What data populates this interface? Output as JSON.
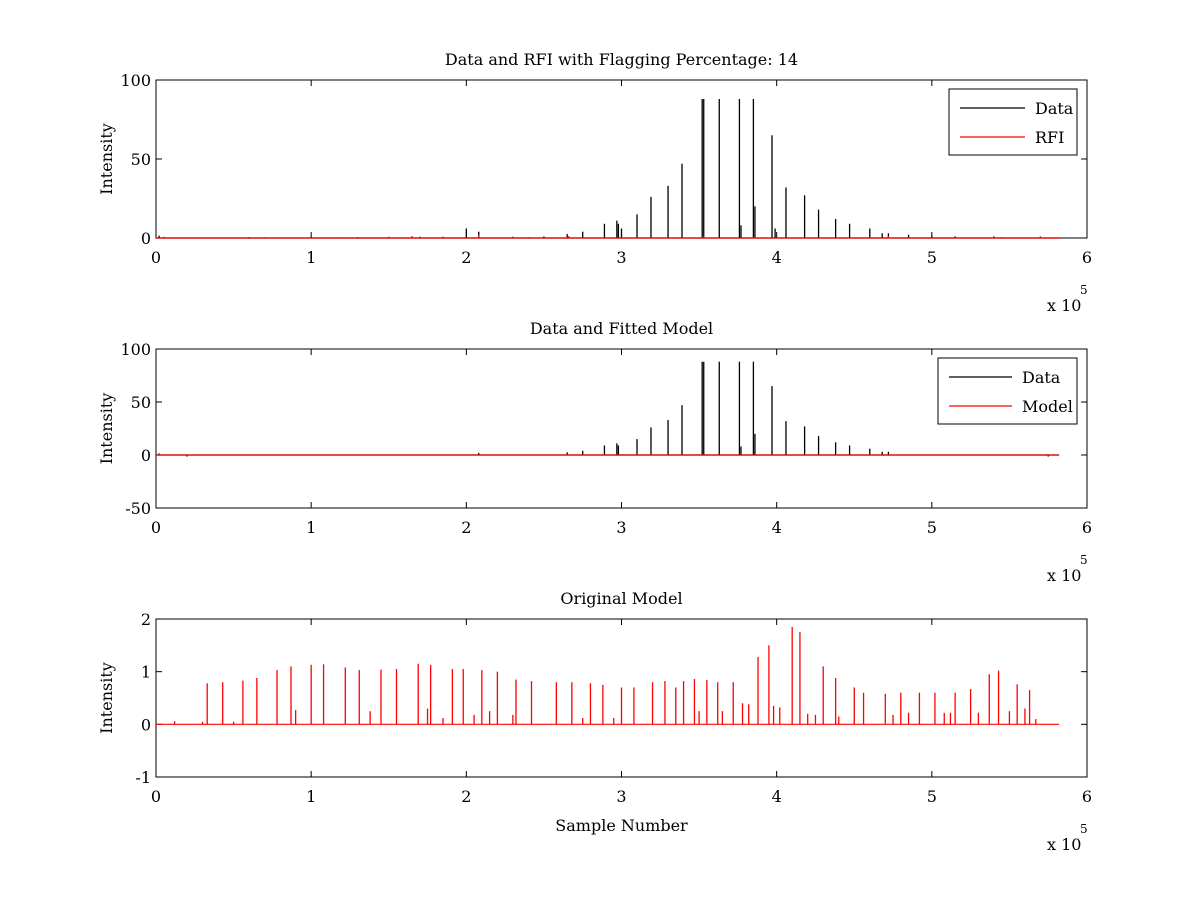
{
  "chart_data": [
    {
      "type": "line",
      "title": "Data and RFI with Flagging Percentage: 14",
      "xlabel": "",
      "ylabel": "Intensity",
      "xlim": [
        0,
        6
      ],
      "ylim": [
        0,
        100
      ],
      "xticks": [
        "0",
        "1",
        "2",
        "3",
        "4",
        "5",
        "6"
      ],
      "yticks": [
        "0",
        "50",
        "100"
      ],
      "x_exponent_label": "x 10",
      "x_exponent": "5",
      "legend": {
        "position": "top-right",
        "entries": [
          "Data",
          "RFI"
        ]
      },
      "series": [
        {
          "name": "Data",
          "color": "#000000",
          "peaks": [
            [
              0.02,
              1.5
            ],
            [
              0.6,
              0.6
            ],
            [
              1.0,
              0.8
            ],
            [
              1.3,
              0.6
            ],
            [
              1.7,
              0.8
            ],
            [
              2.0,
              6
            ],
            [
              2.08,
              4
            ],
            [
              2.3,
              0.8
            ],
            [
              2.5,
              1
            ],
            [
              2.65,
              2.5
            ],
            [
              2.75,
              4
            ],
            [
              2.89,
              9
            ],
            [
              2.97,
              11
            ],
            [
              2.98,
              9
            ],
            [
              3.0,
              6
            ],
            [
              3.1,
              15
            ],
            [
              3.19,
              26
            ],
            [
              3.3,
              33
            ],
            [
              3.39,
              47
            ],
            [
              3.52,
              88
            ],
            [
              3.53,
              88
            ],
            [
              3.63,
              88
            ],
            [
              3.76,
              88
            ],
            [
              3.77,
              8
            ],
            [
              3.85,
              88
            ],
            [
              3.86,
              20
            ],
            [
              3.97,
              65
            ],
            [
              3.99,
              6
            ],
            [
              4.06,
              32
            ],
            [
              4.18,
              27
            ],
            [
              4.27,
              18
            ],
            [
              4.38,
              12
            ],
            [
              4.47,
              9
            ],
            [
              4.6,
              6
            ],
            [
              4.68,
              3
            ],
            [
              4.72,
              3
            ],
            [
              4.85,
              2
            ],
            [
              5.0,
              1.5
            ],
            [
              5.15,
              1
            ],
            [
              5.4,
              1
            ],
            [
              5.7,
              1
            ]
          ]
        },
        {
          "name": "RFI",
          "color": "#ff0000",
          "peaks": [
            [
              0.05,
              0.8
            ],
            [
              0.7,
              0.5
            ],
            [
              1.2,
              0.5
            ],
            [
              1.5,
              0.8
            ],
            [
              1.65,
              1.2
            ],
            [
              1.85,
              0.9
            ],
            [
              2.08,
              1.8
            ],
            [
              2.4,
              0.6
            ],
            [
              2.66,
              1.2
            ],
            [
              3.53,
              1.0
            ],
            [
              3.86,
              1.0
            ],
            [
              4.6,
              0.7
            ],
            [
              4.72,
              1.2
            ],
            [
              5.45,
              0.6
            ],
            [
              5.7,
              0.8
            ]
          ]
        }
      ]
    },
    {
      "type": "line",
      "title": "Data and Fitted Model",
      "xlabel": "",
      "ylabel": "Intensity",
      "xlim": [
        0,
        6
      ],
      "ylim": [
        -50,
        100
      ],
      "xticks": [
        "0",
        "1",
        "2",
        "3",
        "4",
        "5",
        "6"
      ],
      "yticks": [
        "-50",
        "0",
        "50",
        "100"
      ],
      "x_exponent_label": "x 10",
      "x_exponent": "5",
      "legend": {
        "position": "top-right",
        "entries": [
          "Data",
          "Model"
        ]
      },
      "series": [
        {
          "name": "Data",
          "color": "#000000",
          "peaks": [
            [
              0.02,
              1.5
            ],
            [
              0.2,
              -1.5
            ],
            [
              2.08,
              2
            ],
            [
              2.65,
              2.5
            ],
            [
              2.75,
              4
            ],
            [
              2.89,
              9
            ],
            [
              2.97,
              11
            ],
            [
              2.98,
              9
            ],
            [
              3.1,
              15
            ],
            [
              3.19,
              26
            ],
            [
              3.3,
              33
            ],
            [
              3.39,
              47
            ],
            [
              3.52,
              88
            ],
            [
              3.53,
              88
            ],
            [
              3.63,
              88
            ],
            [
              3.76,
              88
            ],
            [
              3.77,
              8
            ],
            [
              3.85,
              88
            ],
            [
              3.86,
              20
            ],
            [
              3.97,
              65
            ],
            [
              4.06,
              32
            ],
            [
              4.18,
              27
            ],
            [
              4.27,
              18
            ],
            [
              4.38,
              12
            ],
            [
              4.47,
              9
            ],
            [
              4.6,
              6
            ],
            [
              4.68,
              3
            ],
            [
              4.72,
              3
            ],
            [
              5.75,
              -1.5
            ]
          ]
        },
        {
          "name": "Model",
          "color": "#ff0000",
          "peaks": []
        }
      ]
    },
    {
      "type": "line",
      "title": "Original Model",
      "xlabel": "Sample Number",
      "ylabel": "Intensity",
      "xlim": [
        0,
        6
      ],
      "ylim": [
        -1,
        2
      ],
      "xticks": [
        "0",
        "1",
        "2",
        "3",
        "4",
        "5",
        "6"
      ],
      "yticks": [
        "-1",
        "0",
        "1",
        "2"
      ],
      "x_exponent_label": "x 10",
      "x_exponent": "5",
      "legend": null,
      "series": [
        {
          "name": "",
          "color": "#ff0000",
          "peaks": [
            [
              0.12,
              0.06
            ],
            [
              0.33,
              0.78
            ],
            [
              0.43,
              0.8
            ],
            [
              0.56,
              0.83
            ],
            [
              0.65,
              0.88
            ],
            [
              0.78,
              1.03
            ],
            [
              0.87,
              1.1
            ],
            [
              1.0,
              1.13
            ],
            [
              1.08,
              1.14
            ],
            [
              1.22,
              1.08
            ],
            [
              1.31,
              1.03
            ],
            [
              1.45,
              1.04
            ],
            [
              1.55,
              1.05
            ],
            [
              1.69,
              1.15
            ],
            [
              1.77,
              1.13
            ],
            [
              1.91,
              1.05
            ],
            [
              1.98,
              1.05
            ],
            [
              2.1,
              1.03
            ],
            [
              2.2,
              1.0
            ],
            [
              2.32,
              0.85
            ],
            [
              2.42,
              0.82
            ],
            [
              2.58,
              0.8
            ],
            [
              2.68,
              0.8
            ],
            [
              2.8,
              0.78
            ],
            [
              2.88,
              0.75
            ],
            [
              3.0,
              0.7
            ],
            [
              3.08,
              0.7
            ],
            [
              3.2,
              0.8
            ],
            [
              3.28,
              0.82
            ],
            [
              3.35,
              0.7
            ],
            [
              3.4,
              0.82
            ],
            [
              3.47,
              0.86
            ],
            [
              3.55,
              0.84
            ],
            [
              3.62,
              0.8
            ],
            [
              3.72,
              0.8
            ],
            [
              3.88,
              1.28
            ],
            [
              3.95,
              1.5
            ],
            [
              4.1,
              1.85
            ],
            [
              4.15,
              1.75
            ],
            [
              4.3,
              1.1
            ],
            [
              4.38,
              0.88
            ],
            [
              4.5,
              0.7
            ],
            [
              4.56,
              0.6
            ],
            [
              4.7,
              0.58
            ],
            [
              4.8,
              0.6
            ],
            [
              4.92,
              0.6
            ],
            [
              5.02,
              0.6
            ],
            [
              5.15,
              0.6
            ],
            [
              5.25,
              0.67
            ],
            [
              5.37,
              0.95
            ],
            [
              5.43,
              1.02
            ],
            [
              5.55,
              0.76
            ],
            [
              5.63,
              0.65
            ],
            [
              0.3,
              0.05
            ],
            [
              0.5,
              0.05
            ],
            [
              0.9,
              0.27
            ],
            [
              1.38,
              0.25
            ],
            [
              1.75,
              0.3
            ],
            [
              1.85,
              0.12
            ],
            [
              2.05,
              0.18
            ],
            [
              2.15,
              0.25
            ],
            [
              2.3,
              0.18
            ],
            [
              2.75,
              0.12
            ],
            [
              2.95,
              0.12
            ],
            [
              3.5,
              0.25
            ],
            [
              3.65,
              0.25
            ],
            [
              3.78,
              0.4
            ],
            [
              3.82,
              0.38
            ],
            [
              3.98,
              0.35
            ],
            [
              4.02,
              0.32
            ],
            [
              4.2,
              0.2
            ],
            [
              4.25,
              0.18
            ],
            [
              4.4,
              0.15
            ],
            [
              4.75,
              0.18
            ],
            [
              4.85,
              0.22
            ],
            [
              5.08,
              0.22
            ],
            [
              5.12,
              0.22
            ],
            [
              5.3,
              0.22
            ],
            [
              5.5,
              0.25
            ],
            [
              5.6,
              0.3
            ],
            [
              5.67,
              0.1
            ]
          ]
        }
      ]
    }
  ]
}
